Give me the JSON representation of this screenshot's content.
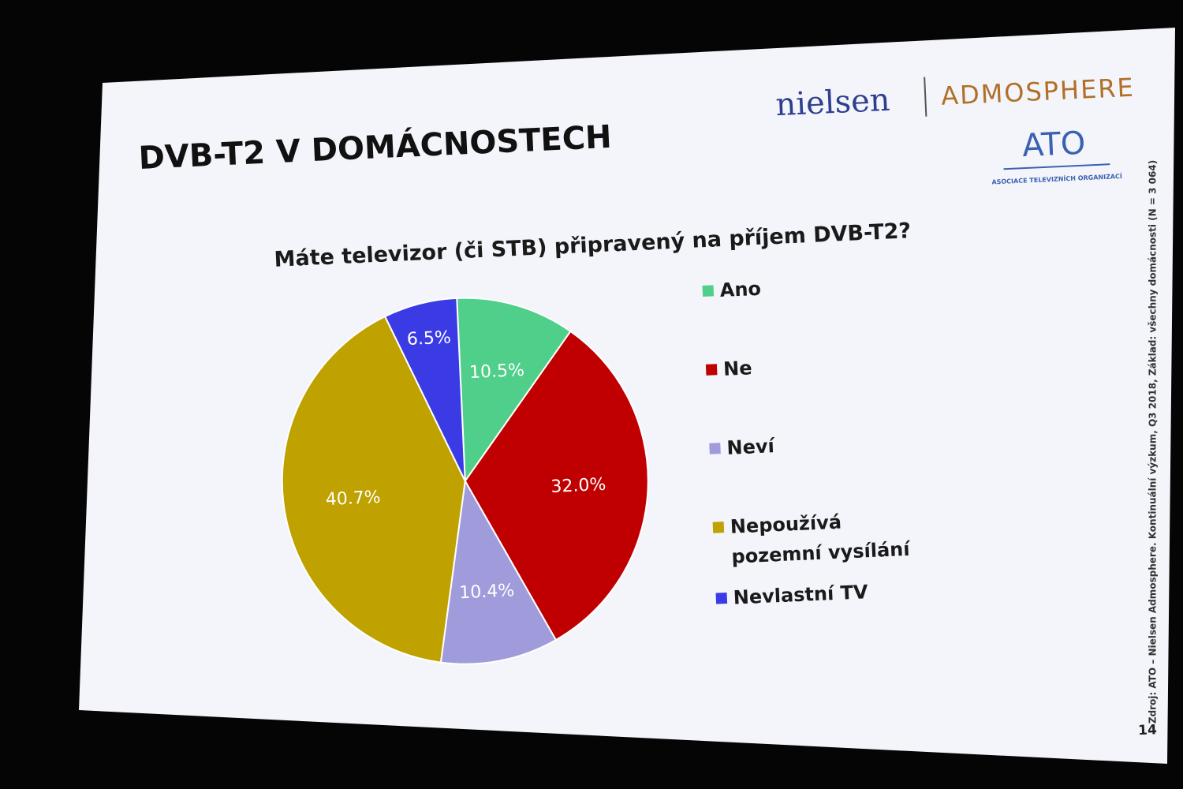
{
  "chart_data": {
    "type": "pie",
    "title": "DVB-T2 V DOMÁCNOSTECH",
    "subtitle": "Máte televizor (či STB) připravený na příjem DVB-T2?",
    "categories": [
      "Ano",
      "Ne",
      "Neví",
      "Nepoužívá pozemní vysílání",
      "Nevlastní TV"
    ],
    "values": [
      10.5,
      32.0,
      10.4,
      40.7,
      6.5
    ],
    "value_labels": [
      "10.5%",
      "32.0%",
      "10.4%",
      "40.7%",
      "6.5%"
    ],
    "colors": [
      "#4fcf8a",
      "#c00000",
      "#a09cdc",
      "#bfa100",
      "#3b3be6"
    ],
    "legend": "right"
  },
  "slide": {
    "logo_nielsen": "nielsen",
    "logo_admosphere": "ADMOSPHERE",
    "logo_ato": "ATO",
    "logo_ato_caption": "ASOCIACE TELEVIZNÍCH ORGANIZACÍ",
    "source": "Zdroj: ATO – Nielsen Admosphere. Kontinuální výzkum, Q3 2018, Základ: všechny domácnosti (N = 3 064)",
    "page_number": "14"
  }
}
